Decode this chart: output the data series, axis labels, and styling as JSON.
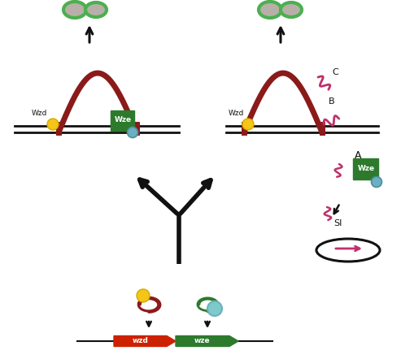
{
  "bg_color": "#ffffff",
  "dark_green": "#2d7a2d",
  "light_green_outline": "#4caf50",
  "gray_blob": "#b8b0a8",
  "dark_red": "#8b1a1a",
  "red_arrow_gene": "#cc2200",
  "green_arrow_gene": "#2d7a2d",
  "pink_squiggle": "#c0306a",
  "yellow_circle": "#f5c518",
  "blue_circle": "#6ab0c0",
  "teal_circle": "#7ecaca",
  "black": "#111111",
  "membrane_color": "#111111",
  "wzd_text": "Wzd",
  "wze_text": "Wze",
  "label_A": "A",
  "label_B": "B",
  "label_C": "C",
  "label_SI": "SI",
  "label_wzd": "wzd",
  "label_wze": "wze",
  "fig_w": 5.1,
  "fig_h": 4.42,
  "dpi": 100
}
